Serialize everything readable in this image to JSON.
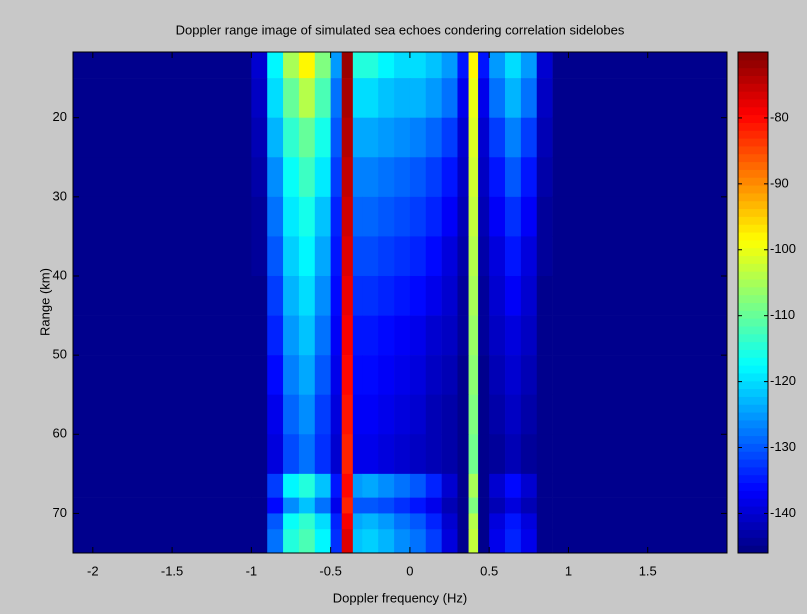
{
  "chart_data": {
    "type": "heatmap",
    "title": "Doppler range image of simulated sea echoes condering correlation sidelobes",
    "x_label": "Doppler frequency (Hz)",
    "y_label": "Range (km)",
    "xlim": [
      -2.125,
      2
    ],
    "xticks": [
      -2,
      -1.5,
      -1,
      -0.5,
      0,
      0.5,
      1,
      1.5
    ],
    "ylim": [
      75,
      11.7
    ],
    "yticks": [
      20,
      30,
      40,
      50,
      60,
      70
    ],
    "clim": [
      -146,
      -70
    ],
    "cticks": [
      -80,
      -90,
      -100,
      -110,
      -120,
      -130,
      -140
    ],
    "colormap": "jet",
    "x_edges": [
      -2.125,
      -1,
      -0.9,
      -0.8,
      -0.7,
      -0.6,
      -0.5,
      -0.43,
      -0.36,
      -0.3,
      -0.2,
      -0.1,
      0,
      0.1,
      0.2,
      0.3,
      0.37,
      0.43,
      0.5,
      0.6,
      0.7,
      0.8,
      0.9,
      2
    ],
    "y_edges": [
      11.7,
      15,
      20,
      25,
      30,
      35,
      40,
      45,
      50,
      55,
      60,
      65,
      68,
      70,
      72,
      75
    ],
    "z": [
      [
        -145,
        -140,
        -118,
        -105,
        -98,
        -108,
        -125,
        -72,
        -115,
        -115,
        -118,
        -120,
        -120,
        -122,
        -125,
        -135,
        -98,
        -135,
        -125,
        -120,
        -125,
        -140,
        -145
      ],
      [
        -145,
        -141,
        -120,
        -110,
        -104,
        -112,
        -128,
        -73,
        -120,
        -120,
        -122,
        -123,
        -123,
        -125,
        -128,
        -138,
        -100,
        -138,
        -128,
        -123,
        -128,
        -141,
        -145
      ],
      [
        -145,
        -142,
        -123,
        -114,
        -110,
        -116,
        -130,
        -74,
        -124,
        -124,
        -125,
        -126,
        -127,
        -129,
        -132,
        -140,
        -101,
        -140,
        -132,
        -127,
        -132,
        -142,
        -145
      ],
      [
        -145,
        -143,
        -126,
        -117,
        -113,
        -119,
        -132,
        -75,
        -127,
        -127,
        -128,
        -129,
        -130,
        -132,
        -135,
        -141,
        -102,
        -141,
        -135,
        -130,
        -135,
        -143,
        -145
      ],
      [
        -145,
        -144,
        -128,
        -119,
        -116,
        -122,
        -134,
        -76,
        -129,
        -129,
        -130,
        -131,
        -132,
        -134,
        -137,
        -142,
        -103,
        -142,
        -137,
        -133,
        -137,
        -144,
        -145
      ],
      [
        -145,
        -144,
        -130,
        -121,
        -118,
        -124,
        -135,
        -77,
        -131,
        -131,
        -132,
        -133,
        -134,
        -136,
        -139,
        -143,
        -104,
        -143,
        -139,
        -135,
        -139,
        -144,
        -145
      ],
      [
        -145,
        -145,
        -132,
        -123,
        -120,
        -126,
        -136,
        -78,
        -133,
        -133,
        -134,
        -135,
        -136,
        -138,
        -140,
        -144,
        -105,
        -144,
        -140,
        -137,
        -140,
        -145,
        -145
      ],
      [
        -145,
        -145,
        -134,
        -125,
        -122,
        -128,
        -137,
        -79,
        -135,
        -135,
        -136,
        -137,
        -138,
        -140,
        -141,
        -144,
        -106,
        -144,
        -141,
        -139,
        -141,
        -145,
        -145
      ],
      [
        -145,
        -145,
        -136,
        -127,
        -124,
        -130,
        -138,
        -80,
        -136,
        -136,
        -137,
        -138,
        -139,
        -141,
        -142,
        -145,
        -107,
        -145,
        -142,
        -140,
        -142,
        -145,
        -145
      ],
      [
        -145,
        -145,
        -138,
        -129,
        -126,
        -132,
        -139,
        -81,
        -137,
        -137,
        -138,
        -139,
        -140,
        -142,
        -143,
        -145,
        -108,
        -145,
        -143,
        -141,
        -143,
        -145,
        -145
      ],
      [
        -145,
        -145,
        -139,
        -131,
        -128,
        -133,
        -140,
        -82,
        -138,
        -138,
        -139,
        -140,
        -141,
        -142,
        -143,
        -145,
        -109,
        -145,
        -144,
        -142,
        -144,
        -145,
        -145
      ],
      [
        -145,
        -145,
        -132,
        -118,
        -115,
        -122,
        -135,
        -80,
        -125,
        -124,
        -126,
        -128,
        -130,
        -134,
        -140,
        -145,
        -105,
        -145,
        -140,
        -136,
        -140,
        -145,
        -145
      ],
      [
        -145,
        -145,
        -136,
        -126,
        -122,
        -128,
        -138,
        -82,
        -130,
        -130,
        -131,
        -133,
        -135,
        -138,
        -142,
        -145,
        -108,
        -145,
        -142,
        -139,
        -142,
        -145,
        -145
      ],
      [
        -145,
        -145,
        -130,
        -117,
        -114,
        -120,
        -134,
        -79,
        -124,
        -123,
        -125,
        -128,
        -130,
        -134,
        -140,
        -145,
        -104,
        -145,
        -139,
        -135,
        -139,
        -145,
        -145
      ],
      [
        -145,
        -145,
        -128,
        -115,
        -112,
        -118,
        -133,
        -77,
        -122,
        -121,
        -123,
        -126,
        -128,
        -132,
        -139,
        -145,
        -103,
        -145,
        -138,
        -134,
        -138,
        -145,
        -145
      ]
    ]
  }
}
